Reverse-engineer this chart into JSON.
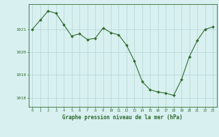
{
  "x": [
    0,
    1,
    2,
    3,
    4,
    5,
    6,
    7,
    8,
    9,
    10,
    11,
    12,
    13,
    14,
    15,
    16,
    17,
    18,
    19,
    20,
    21,
    22,
    23
  ],
  "y": [
    1021.0,
    1021.4,
    1021.8,
    1021.7,
    1021.2,
    1020.7,
    1020.8,
    1020.55,
    1020.6,
    1021.05,
    1020.85,
    1020.75,
    1020.3,
    1019.6,
    1018.7,
    1018.35,
    1018.25,
    1018.2,
    1018.1,
    1018.8,
    1019.8,
    1020.5,
    1021.0,
    1021.1
  ],
  "line_color": "#2d6a2d",
  "marker_color": "#2d6a2d",
  "bg_color": "#d8f0f0",
  "grid_color": "#b8d8d8",
  "ylabel_ticks": [
    1018,
    1019,
    1020,
    1021
  ],
  "xlabel": "Graphe pression niveau de la mer (hPa)",
  "xlim": [
    -0.5,
    23.5
  ],
  "ylim": [
    1017.6,
    1022.1
  ],
  "tick_color": "#2d6a2d",
  "label_color": "#2d6a2d"
}
